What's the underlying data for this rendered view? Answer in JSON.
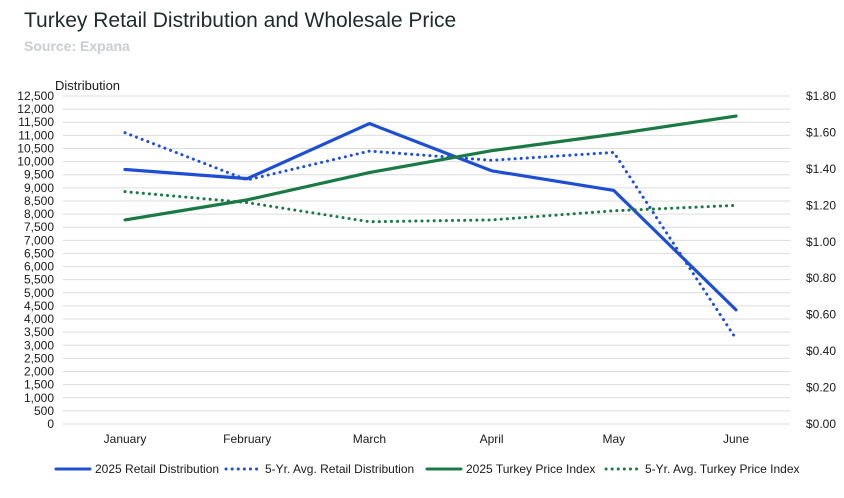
{
  "title": "Turkey Retail Distribution and Wholesale Price",
  "subtitle": "Source: Expana",
  "colors": {
    "blue": "#1f4fd1",
    "green": "#1a7a45",
    "grid": "#dcdcdc",
    "text": "#1a1a1a"
  },
  "chart_data": {
    "type": "line",
    "title": "Turkey Retail Distribution and Wholesale Price",
    "subtitle": "Source: Expana",
    "categories": [
      "January",
      "February",
      "March",
      "April",
      "May",
      "June"
    ],
    "ylabel": "Distribution",
    "ylim": [
      0,
      12500
    ],
    "y_ticks": [
      "0",
      "500",
      "1,000",
      "1,500",
      "2,000",
      "2,500",
      "3,000",
      "3,500",
      "4,000",
      "4,500",
      "5,000",
      "5,500",
      "6,000",
      "6,500",
      "7,000",
      "7,500",
      "8,000",
      "8,500",
      "9,000",
      "9,500",
      "10,000",
      "10,500",
      "11,000",
      "11,500",
      "12,000",
      "12,500"
    ],
    "y2lim": [
      0,
      1.8
    ],
    "y2_ticks": [
      "$0.00",
      "$0.20",
      "$0.40",
      "$0.60",
      "$0.80",
      "$1.00",
      "$1.20",
      "$1.40",
      "$1.60",
      "$1.80"
    ],
    "grid": true,
    "legend_position": "bottom",
    "series": [
      {
        "name": "2025 Retail Distribution",
        "axis": "left",
        "style": "solid",
        "color": "#1f4fd1",
        "values": [
          9700,
          9350,
          11450,
          9650,
          8900,
          4350
        ]
      },
      {
        "name": "5-Yr. Avg. Retail Distribution",
        "axis": "left",
        "style": "dotted",
        "color": "#1f4fd1",
        "values": [
          11100,
          9300,
          10400,
          10050,
          10350,
          3250
        ]
      },
      {
        "name": "2025 Turkey Price Index",
        "axis": "right",
        "style": "solid",
        "color": "#1a7a45",
        "values": [
          1.12,
          1.23,
          1.38,
          1.5,
          1.59,
          1.69
        ]
      },
      {
        "name": "5-Yr. Avg. Turkey Price Index",
        "axis": "right",
        "style": "dotted",
        "color": "#1a7a45",
        "values": [
          1.275,
          1.215,
          1.11,
          1.12,
          1.17,
          1.2
        ]
      }
    ]
  }
}
